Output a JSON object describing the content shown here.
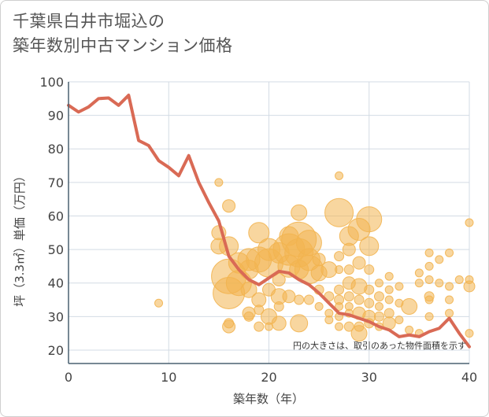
{
  "title_line1": "千葉県白井市堀込の",
  "title_line2": "築年数別中古マンション価格",
  "chart_data": {
    "type": "scatter",
    "xlabel": "築年数（年）",
    "ylabel": "坪（3.3㎡）単価（万円）",
    "xlim": [
      0,
      40
    ],
    "ylim": [
      16,
      100
    ],
    "x_ticks": [
      0,
      10,
      20,
      30,
      40
    ],
    "y_ticks": [
      20,
      30,
      40,
      50,
      60,
      70,
      80,
      90,
      100
    ],
    "grid": true,
    "note": "円の大きさは、取引のあった物件面積を示す",
    "colors": {
      "bubble": "#f2b450",
      "line": "#d96a55",
      "grid": "#d3dbe4",
      "axis": "#4a6070"
    },
    "line": {
      "x": [
        0,
        1,
        2,
        3,
        4,
        5,
        6,
        7,
        8,
        9,
        10,
        11,
        12,
        13,
        14,
        15,
        16,
        17,
        18,
        19,
        20,
        21,
        22,
        23,
        24,
        25,
        26,
        27,
        28,
        29,
        30,
        31,
        32,
        33,
        34,
        35,
        36,
        37,
        38,
        39,
        40
      ],
      "y": [
        93,
        91,
        92.5,
        95,
        95.2,
        93,
        96,
        82.5,
        81,
        76.5,
        74.5,
        72,
        78,
        70,
        64,
        58.5,
        48,
        44,
        41,
        39.5,
        41.5,
        43.5,
        43,
        41,
        39.5,
        37,
        34,
        31,
        30.5,
        29.5,
        28.5,
        27,
        26,
        24,
        24.5,
        24,
        25.5,
        26.5,
        29.5,
        25,
        21
      ]
    },
    "bubbles": [
      {
        "x": 9,
        "y": 34,
        "s": 5
      },
      {
        "x": 15,
        "y": 70,
        "s": 5
      },
      {
        "x": 15,
        "y": 55,
        "s": 9
      },
      {
        "x": 15,
        "y": 51,
        "s": 10
      },
      {
        "x": 16,
        "y": 63,
        "s": 8
      },
      {
        "x": 16,
        "y": 51,
        "s": 12
      },
      {
        "x": 16,
        "y": 42,
        "s": 22
      },
      {
        "x": 16,
        "y": 37,
        "s": 20
      },
      {
        "x": 16,
        "y": 27,
        "s": 8
      },
      {
        "x": 16,
        "y": 28,
        "s": 6
      },
      {
        "x": 17,
        "y": 46,
        "s": 13
      },
      {
        "x": 17,
        "y": 40,
        "s": 16
      },
      {
        "x": 18,
        "y": 47,
        "s": 14
      },
      {
        "x": 18,
        "y": 44,
        "s": 12
      },
      {
        "x": 18,
        "y": 38,
        "s": 10
      },
      {
        "x": 18,
        "y": 31,
        "s": 8
      },
      {
        "x": 18,
        "y": 30,
        "s": 6
      },
      {
        "x": 19,
        "y": 55,
        "s": 13
      },
      {
        "x": 19,
        "y": 47,
        "s": 16
      },
      {
        "x": 19,
        "y": 35,
        "s": 9
      },
      {
        "x": 19,
        "y": 32,
        "s": 6
      },
      {
        "x": 19,
        "y": 27,
        "s": 6
      },
      {
        "x": 20,
        "y": 50,
        "s": 14
      },
      {
        "x": 20,
        "y": 46,
        "s": 18
      },
      {
        "x": 20,
        "y": 38,
        "s": 8
      },
      {
        "x": 20,
        "y": 30,
        "s": 10
      },
      {
        "x": 20,
        "y": 27,
        "s": 5
      },
      {
        "x": 21,
        "y": 49,
        "s": 13
      },
      {
        "x": 21,
        "y": 41,
        "s": 8
      },
      {
        "x": 21,
        "y": 36,
        "s": 10
      },
      {
        "x": 21,
        "y": 33,
        "s": 6
      },
      {
        "x": 21,
        "y": 28,
        "s": 9
      },
      {
        "x": 22,
        "y": 54,
        "s": 12
      },
      {
        "x": 22,
        "y": 50,
        "s": 20
      },
      {
        "x": 22,
        "y": 45,
        "s": 14
      },
      {
        "x": 22,
        "y": 36,
        "s": 8
      },
      {
        "x": 23,
        "y": 61,
        "s": 10
      },
      {
        "x": 23,
        "y": 53,
        "s": 22
      },
      {
        "x": 23,
        "y": 49,
        "s": 18
      },
      {
        "x": 23,
        "y": 44,
        "s": 12
      },
      {
        "x": 23,
        "y": 35,
        "s": 6
      },
      {
        "x": 23,
        "y": 28,
        "s": 11
      },
      {
        "x": 24,
        "y": 52,
        "s": 16
      },
      {
        "x": 24,
        "y": 47,
        "s": 14
      },
      {
        "x": 24,
        "y": 44,
        "s": 18
      },
      {
        "x": 24,
        "y": 35,
        "s": 6
      },
      {
        "x": 25,
        "y": 47,
        "s": 8
      },
      {
        "x": 25,
        "y": 43,
        "s": 10
      },
      {
        "x": 25,
        "y": 38,
        "s": 6
      },
      {
        "x": 25,
        "y": 33,
        "s": 5
      },
      {
        "x": 26,
        "y": 44,
        "s": 10
      },
      {
        "x": 26,
        "y": 36,
        "s": 6
      },
      {
        "x": 26,
        "y": 31,
        "s": 5
      },
      {
        "x": 26,
        "y": 29,
        "s": 5
      },
      {
        "x": 27,
        "y": 72,
        "s": 5
      },
      {
        "x": 27,
        "y": 61,
        "s": 18
      },
      {
        "x": 27,
        "y": 48,
        "s": 6
      },
      {
        "x": 27,
        "y": 44,
        "s": 5
      },
      {
        "x": 27,
        "y": 38,
        "s": 6
      },
      {
        "x": 27,
        "y": 35,
        "s": 6
      },
      {
        "x": 27,
        "y": 33,
        "s": 5
      },
      {
        "x": 27,
        "y": 30,
        "s": 5
      },
      {
        "x": 27,
        "y": 27,
        "s": 5
      },
      {
        "x": 28,
        "y": 54,
        "s": 12
      },
      {
        "x": 28,
        "y": 50,
        "s": 8
      },
      {
        "x": 28,
        "y": 44,
        "s": 6
      },
      {
        "x": 28,
        "y": 40,
        "s": 8
      },
      {
        "x": 28,
        "y": 36,
        "s": 6
      },
      {
        "x": 28,
        "y": 33,
        "s": 5
      },
      {
        "x": 28,
        "y": 31,
        "s": 5
      },
      {
        "x": 28,
        "y": 27,
        "s": 6
      },
      {
        "x": 29,
        "y": 56,
        "s": 14
      },
      {
        "x": 29,
        "y": 46,
        "s": 8
      },
      {
        "x": 29,
        "y": 39,
        "s": 10
      },
      {
        "x": 29,
        "y": 35,
        "s": 6
      },
      {
        "x": 29,
        "y": 31,
        "s": 8
      },
      {
        "x": 29,
        "y": 27,
        "s": 6
      },
      {
        "x": 29,
        "y": 25,
        "s": 10
      },
      {
        "x": 30,
        "y": 59,
        "s": 16
      },
      {
        "x": 30,
        "y": 51,
        "s": 12
      },
      {
        "x": 30,
        "y": 44,
        "s": 6
      },
      {
        "x": 30,
        "y": 38,
        "s": 6
      },
      {
        "x": 30,
        "y": 34,
        "s": 6
      },
      {
        "x": 30,
        "y": 30,
        "s": 8
      },
      {
        "x": 30,
        "y": 28,
        "s": 6
      },
      {
        "x": 31,
        "y": 40,
        "s": 5
      },
      {
        "x": 31,
        "y": 36,
        "s": 6
      },
      {
        "x": 31,
        "y": 33,
        "s": 5
      },
      {
        "x": 31,
        "y": 30,
        "s": 6
      },
      {
        "x": 31,
        "y": 27,
        "s": 5
      },
      {
        "x": 32,
        "y": 42,
        "s": 5
      },
      {
        "x": 32,
        "y": 38,
        "s": 5
      },
      {
        "x": 32,
        "y": 35,
        "s": 5
      },
      {
        "x": 32,
        "y": 31,
        "s": 6
      },
      {
        "x": 32,
        "y": 28,
        "s": 8
      },
      {
        "x": 33,
        "y": 39,
        "s": 5
      },
      {
        "x": 33,
        "y": 34,
        "s": 5
      },
      {
        "x": 33,
        "y": 29,
        "s": 5
      },
      {
        "x": 34,
        "y": 33,
        "s": 10
      },
      {
        "x": 34,
        "y": 26,
        "s": 5
      },
      {
        "x": 35,
        "y": 40,
        "s": 5
      },
      {
        "x": 35,
        "y": 43,
        "s": 5
      },
      {
        "x": 35,
        "y": 25,
        "s": 5
      },
      {
        "x": 36,
        "y": 49,
        "s": 5
      },
      {
        "x": 36,
        "y": 45,
        "s": 5
      },
      {
        "x": 36,
        "y": 41,
        "s": 5
      },
      {
        "x": 36,
        "y": 36,
        "s": 6
      },
      {
        "x": 36,
        "y": 35,
        "s": 5
      },
      {
        "x": 36,
        "y": 30,
        "s": 5
      },
      {
        "x": 37,
        "y": 47,
        "s": 5
      },
      {
        "x": 37,
        "y": 40,
        "s": 5
      },
      {
        "x": 38,
        "y": 49,
        "s": 5
      },
      {
        "x": 38,
        "y": 39,
        "s": 5
      },
      {
        "x": 38,
        "y": 35,
        "s": 5
      },
      {
        "x": 38,
        "y": 31,
        "s": 5
      },
      {
        "x": 39,
        "y": 41,
        "s": 5
      },
      {
        "x": 40,
        "y": 58,
        "s": 5
      },
      {
        "x": 40,
        "y": 41,
        "s": 5
      },
      {
        "x": 40,
        "y": 39,
        "s": 7
      },
      {
        "x": 40,
        "y": 25,
        "s": 5
      }
    ]
  }
}
